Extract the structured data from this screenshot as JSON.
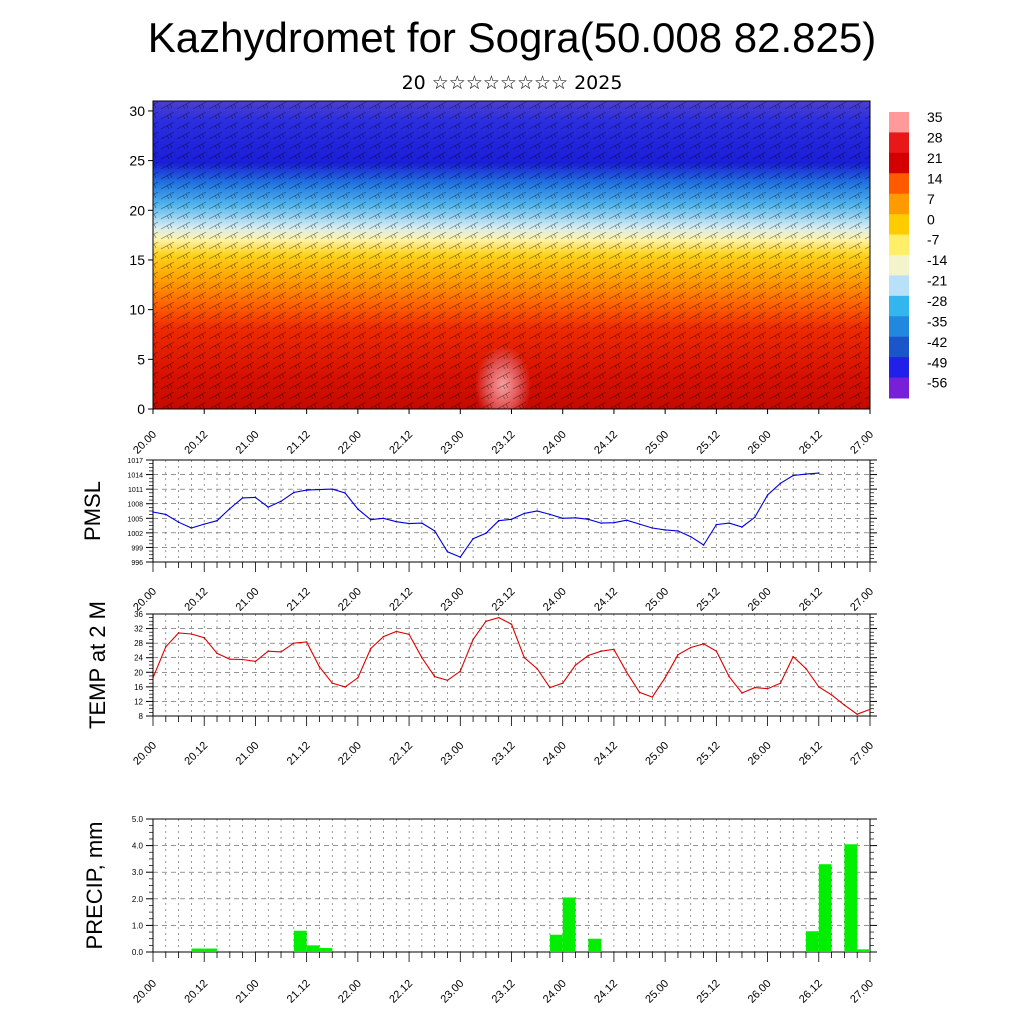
{
  "header": {
    "title": "Kazhydromet for Sogra(50.008 82.825)",
    "subtitle": "20 ☆☆☆☆☆☆☆☆ 2025"
  },
  "colors": {
    "pmsl_line": "#0000dd",
    "temp_line": "#dd0000",
    "precip_bar": "#00ee00",
    "grid": "#555555"
  },
  "chart_data": [
    {
      "type": "heatmap",
      "title": "Kazhydromet for Sogra(50.008 82.825)",
      "subtitle": "20 ☆☆☆☆☆☆☆☆ 2025",
      "ylim": [
        0,
        31
      ],
      "y_ticks": [
        0,
        5,
        10,
        15,
        20,
        25,
        30
      ],
      "x_ticks": [
        "20.00",
        "20.12",
        "21.00",
        "21.12",
        "22.00",
        "22.12",
        "23.00",
        "23.12",
        "24.00",
        "24.12",
        "25.00",
        "25.12",
        "26.00",
        "26.12",
        "27.00"
      ],
      "colorbar": {
        "labels": [
          "35",
          "28",
          "21",
          "14",
          "7",
          "0",
          "-7",
          "-14",
          "-21",
          "-28",
          "-35",
          "-42",
          "-49",
          "-56"
        ],
        "colors": [
          "#ff9a9a",
          "#e81818",
          "#d40000",
          "#ff5a00",
          "#ff9a00",
          "#ffcc00",
          "#ffee66",
          "#f4f4cc",
          "#b8e0f8",
          "#33b5ee",
          "#2288dd",
          "#1a55cc",
          "#2020e8",
          "#7820d8"
        ]
      },
      "overlay": "wind barbs"
    },
    {
      "type": "line",
      "ylabel": "PMSL",
      "ylim": [
        996,
        1017
      ],
      "y_ticks": [
        996,
        999,
        1002,
        1005,
        1008,
        1011,
        1014,
        1017
      ],
      "x_ticks": [
        "20.00",
        "20.12",
        "21.00",
        "21.12",
        "22.00",
        "22.12",
        "23.00",
        "23.12",
        "24.00",
        "24.12",
        "25.00",
        "25.12",
        "26.00",
        "26.12",
        "27.00"
      ],
      "x_hours_step": 3,
      "values": [
        1006.3,
        1005.8,
        1004.2,
        1003.0,
        1003.8,
        1004.5,
        1007.0,
        1009.2,
        1009.3,
        1007.3,
        1008.5,
        1010.3,
        1010.8,
        1010.9,
        1011.0,
        1010.2,
        1006.9,
        1004.7,
        1005.0,
        1004.3,
        1003.9,
        1004.0,
        1002.4,
        998.1,
        997.0,
        1000.8,
        1001.9,
        1004.5,
        1004.8,
        1006.0,
        1006.5,
        1005.8,
        1005.0,
        1005.1,
        1004.8,
        1004.0,
        1004.1,
        1004.6,
        1003.8,
        1003.0,
        1002.6,
        1002.4,
        1001.2,
        999.5,
        1003.7,
        1004.0,
        1003.2,
        1005.2,
        1009.8,
        1012.2,
        1013.8,
        1014.1,
        1014.3
      ],
      "grid": true
    },
    {
      "type": "line",
      "ylabel": "TEMP at 2 M",
      "ylim": [
        8,
        36
      ],
      "y_ticks": [
        8,
        12,
        16,
        20,
        24,
        28,
        32,
        36
      ],
      "x_ticks": [
        "20.00",
        "20.12",
        "21.00",
        "21.12",
        "22.00",
        "22.12",
        "23.00",
        "23.12",
        "24.00",
        "24.12",
        "25.00",
        "25.12",
        "26.00",
        "26.12",
        "27.00"
      ],
      "x_hours_step": 3,
      "values": [
        18.5,
        27.0,
        30.8,
        30.5,
        29.5,
        25.2,
        23.6,
        23.5,
        23.0,
        25.8,
        25.6,
        28.0,
        28.3,
        21.5,
        17.0,
        16.0,
        18.5,
        26.5,
        29.8,
        31.2,
        30.4,
        24.0,
        18.8,
        17.8,
        20.3,
        29.0,
        34.0,
        35.0,
        33.2,
        24.0,
        21.0,
        15.8,
        17.0,
        22.0,
        24.6,
        25.8,
        26.3,
        20.0,
        14.5,
        13.2,
        18.5,
        24.8,
        26.8,
        27.8,
        25.8,
        18.8,
        14.3,
        15.8,
        15.5,
        17.0,
        24.3,
        21.0,
        16.0,
        13.8,
        11.0,
        8.5,
        9.8
      ],
      "grid": true
    },
    {
      "type": "bar",
      "ylabel": "PRECIP, mm",
      "ylim": [
        0,
        5
      ],
      "y_ticks": [
        "0.0",
        "1.0",
        "2.0",
        "3.0",
        "4.0",
        "5.0"
      ],
      "x_ticks": [
        "20.00",
        "20.12",
        "21.00",
        "21.12",
        "22.00",
        "22.12",
        "23.00",
        "23.12",
        "24.00",
        "24.12",
        "25.00",
        "25.12",
        "26.00",
        "26.12",
        "27.00"
      ],
      "x_hours_step": 3,
      "values": [
        0,
        0,
        0,
        0.13,
        0.13,
        0,
        0,
        0.03,
        0,
        0,
        0,
        0.8,
        0.25,
        0.15,
        0,
        0,
        0,
        0,
        0,
        0,
        0,
        0,
        0,
        0,
        0,
        0,
        0,
        0,
        0,
        0,
        0,
        0.65,
        2.05,
        0,
        0.5,
        0,
        0,
        0,
        0,
        0,
        0,
        0,
        0,
        0,
        0,
        0,
        0,
        0,
        0,
        0,
        0,
        0.78,
        3.3,
        0,
        4.05,
        0.1,
        0
      ],
      "grid": true
    }
  ]
}
